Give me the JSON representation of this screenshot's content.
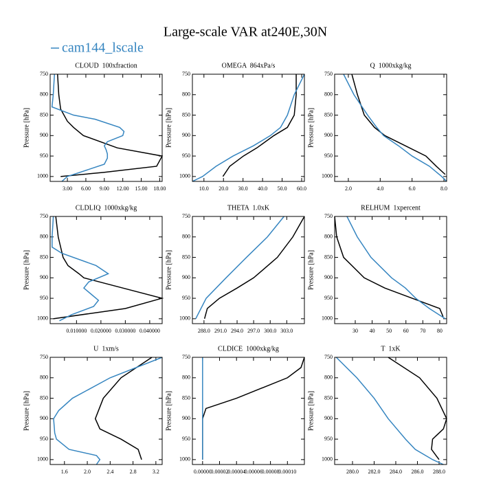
{
  "header": {
    "title": "Large-scale VAR at240E,30N",
    "legend": {
      "name": "cam144_lscale",
      "color": "#3585c0"
    }
  },
  "chart_data": [
    {
      "type": "line",
      "title": "CLOUD  100xfraction",
      "ylabel": "Pressure [hPa]",
      "xlim": [
        0.2,
        18.4
      ],
      "ylim": [
        750,
        1012
      ],
      "y_inverted": true,
      "xticks": [
        {
          "value": 3,
          "label": "3.00"
        },
        {
          "value": 6,
          "label": "6.00"
        },
        {
          "value": 9,
          "label": "9.00"
        },
        {
          "value": 12,
          "label": "12.00"
        },
        {
          "value": 15,
          "label": "15.00"
        },
        {
          "value": 18,
          "label": "18.00"
        }
      ],
      "yticks": [
        750,
        800,
        850,
        900,
        950,
        1000
      ],
      "series": [
        {
          "color": "#000000",
          "x": [
            1.4,
            1.6,
            1.9,
            3.0,
            4.0,
            5.6,
            11.1,
            18.4,
            17.5,
            8.9,
            1.9
          ],
          "y": [
            750,
            800,
            835,
            865,
            880,
            900,
            930,
            950,
            975,
            990,
            1000
          ]
        },
        {
          "color": "#3585c0",
          "x": [
            0.9,
            0.7,
            0.5,
            4.0,
            7.5,
            11.5,
            12.2,
            12.0,
            9.5,
            9.0,
            9.3,
            9.5,
            9.5,
            9.0,
            7.0,
            3.0,
            2.1
          ],
          "y": [
            750,
            800,
            830,
            850,
            860,
            880,
            890,
            900,
            915,
            925,
            935,
            945,
            955,
            970,
            980,
            1000,
            1012
          ]
        }
      ]
    },
    {
      "type": "line",
      "title": "OMEGA  864xPa/s",
      "ylabel": "Pressure [hPa]",
      "xlim": [
        4.1,
        61.4
      ],
      "ylim": [
        750,
        1012
      ],
      "y_inverted": true,
      "xticks": [
        {
          "value": 10,
          "label": "10.0"
        },
        {
          "value": 20,
          "label": "20.0"
        },
        {
          "value": 30,
          "label": "30.0"
        },
        {
          "value": 40,
          "label": "40.0"
        },
        {
          "value": 50,
          "label": "50.0"
        },
        {
          "value": 60,
          "label": "60.0"
        }
      ],
      "yticks": [
        750,
        800,
        850,
        900,
        950,
        1000
      ],
      "series": [
        {
          "color": "#000000",
          "x": [
            57.2,
            57.2,
            56.2,
            52.7,
            45.8,
            37.1,
            30.2,
            23.2,
            19.7
          ],
          "y": [
            750,
            800,
            850,
            880,
            900,
            930,
            950,
            975,
            1000
          ]
        },
        {
          "color": "#3585c0",
          "x": [
            61.4,
            56.2,
            52.7,
            49.2,
            44.0,
            35.3,
            24.9,
            16.2,
            9.3,
            4.1
          ],
          "y": [
            750,
            800,
            850,
            880,
            900,
            925,
            950,
            975,
            1000,
            1012
          ]
        }
      ]
    },
    {
      "type": "line",
      "title": "Q  1000xkg/kg",
      "ylabel": "Pressure [hPa]",
      "xlim": [
        1.14,
        8.17
      ],
      "ylim": [
        750,
        1012
      ],
      "y_inverted": true,
      "xticks": [
        {
          "value": 2,
          "label": "2.0"
        },
        {
          "value": 4,
          "label": "4.0"
        },
        {
          "value": 6,
          "label": "6.0"
        },
        {
          "value": 8,
          "label": "8.0"
        }
      ],
      "yticks": [
        750,
        800,
        850,
        900,
        950,
        1000
      ],
      "series": [
        {
          "color": "#000000",
          "x": [
            2.22,
            2.57,
            3.0,
            3.64,
            4.29,
            5.58,
            6.87,
            7.52,
            8.08
          ],
          "y": [
            750,
            800,
            850,
            880,
            900,
            925,
            950,
            975,
            995
          ]
        },
        {
          "color": "#3585c0",
          "x": [
            1.7,
            2.35,
            3.21,
            3.78,
            4.21,
            5.15,
            6.0,
            7.09,
            7.86,
            8.17
          ],
          "y": [
            750,
            800,
            850,
            880,
            900,
            925,
            950,
            975,
            1000,
            1012
          ]
        }
      ]
    },
    {
      "type": "line",
      "title": "CLDLIQ  1000xkg/kg",
      "ylabel": "Pressure [hPa]",
      "xlim": [
        -0.0008,
        0.0451
      ],
      "ylim": [
        750,
        1012
      ],
      "y_inverted": true,
      "xticks": [
        {
          "value": 0.01,
          "label": "0.010000"
        },
        {
          "value": 0.02,
          "label": "0.020000"
        },
        {
          "value": 0.03,
          "label": "0.030000"
        },
        {
          "value": 0.04,
          "label": "0.040000"
        }
      ],
      "yticks": [
        750,
        800,
        850,
        900,
        950,
        1000
      ],
      "series": [
        {
          "color": "#000000",
          "x": [
            0.0015,
            0.0025,
            0.0045,
            0.0065,
            0.011,
            0.013,
            0.029,
            0.045,
            0.03,
            0.0005
          ],
          "y": [
            750,
            800,
            850,
            870,
            890,
            900,
            925,
            950,
            975,
            1000
          ]
        },
        {
          "color": "#3585c0",
          "x": [
            0.0005,
            0.0,
            0.0,
            0.004,
            0.018,
            0.023,
            0.015,
            0.013,
            0.016,
            0.019,
            0.017,
            0.008,
            0.003
          ],
          "y": [
            750,
            800,
            825,
            840,
            870,
            890,
            910,
            925,
            940,
            955,
            970,
            990,
            1005
          ]
        }
      ]
    },
    {
      "type": "line",
      "title": "THETA  1.0xK",
      "ylabel": "Pressure [hPa]",
      "xlim": [
        285.9,
        306.2
      ],
      "ylim": [
        750,
        1012
      ],
      "y_inverted": true,
      "xticks": [
        {
          "value": 288,
          "label": "288.0"
        },
        {
          "value": 291,
          "label": "291.0"
        },
        {
          "value": 294,
          "label": "294.0"
        },
        {
          "value": 297,
          "label": "297.0"
        },
        {
          "value": 300,
          "label": "300.0"
        },
        {
          "value": 303,
          "label": "303.0"
        }
      ],
      "yticks": [
        750,
        800,
        850,
        900,
        950,
        1000
      ],
      "series": [
        {
          "color": "#000000",
          "x": [
            306.2,
            304.1,
            301.3,
            297.0,
            294.0,
            290.8,
            288.6,
            288.1
          ],
          "y": [
            750,
            800,
            850,
            900,
            925,
            950,
            975,
            1000
          ]
        },
        {
          "color": "#3585c0",
          "x": [
            302.5,
            299.5,
            295.7,
            292.0,
            288.4,
            286.5
          ],
          "y": [
            750,
            800,
            850,
            900,
            950,
            1000
          ]
        }
      ]
    },
    {
      "type": "line",
      "title": "RELHUM  1xpercent",
      "ylabel": "Pressure [hPa]",
      "xlim": [
        17.8,
        84.1
      ],
      "ylim": [
        750,
        1012
      ],
      "y_inverted": true,
      "xticks": [
        30,
        40,
        50,
        60,
        70,
        80
      ],
      "yticks": [
        750,
        800,
        850,
        900,
        950,
        1000
      ],
      "series": [
        {
          "color": "#000000",
          "x": [
            17.8,
            19.0,
            23.1,
            35.3,
            47.5,
            63.7,
            80.0,
            82.0
          ],
          "y": [
            750,
            800,
            850,
            900,
            925,
            950,
            975,
            995
          ]
        },
        {
          "color": "#3585c0",
          "x": [
            25.1,
            31.2,
            39.3,
            51.5,
            59.7,
            65.8,
            73.9,
            83.3
          ],
          "y": [
            750,
            800,
            850,
            900,
            925,
            950,
            975,
            1000
          ]
        }
      ]
    },
    {
      "type": "line",
      "title": "U  1xm/s",
      "ylabel": "Pressure [hPa]",
      "xlim": [
        1.35,
        3.31
      ],
      "ylim": [
        750,
        1012
      ],
      "y_inverted": true,
      "xticks": [
        1.6,
        {
          "value": 2,
          "label": "2.0"
        },
        2.4,
        2.8,
        3.2
      ],
      "yticks": [
        750,
        800,
        850,
        900,
        950,
        1000
      ],
      "series": [
        {
          "color": "#000000",
          "x": [
            3.13,
            2.59,
            2.28,
            2.14,
            2.22,
            2.59,
            2.89,
            2.95
          ],
          "y": [
            750,
            800,
            850,
            900,
            925,
            950,
            975,
            1000
          ]
        },
        {
          "color": "#3585c0",
          "x": [
            3.31,
            2.4,
            1.74,
            1.5,
            1.41,
            1.43,
            1.46,
            1.68,
            2.16,
            2.22,
            2.16
          ],
          "y": [
            750,
            800,
            850,
            880,
            900,
            935,
            950,
            975,
            990,
            1000,
            1012
          ]
        }
      ]
    },
    {
      "type": "line",
      "title": "CLDICE  1000xkg/kg",
      "ylabel": "Pressure [hPa]",
      "xlim": [
        -1.2e-05,
        0.00012
      ],
      "ylim": [
        750,
        1012
      ],
      "y_inverted": true,
      "xticks": [
        {
          "value": 0,
          "label": "0.00000"
        },
        {
          "value": 2e-05,
          "label": "0.00002"
        },
        {
          "value": 4e-05,
          "label": "0.00004"
        },
        {
          "value": 6e-05,
          "label": "0.00006"
        },
        {
          "value": 8e-05,
          "label": "0.00008"
        },
        {
          "value": 0.0001,
          "label": "0.00010"
        }
      ],
      "yticks": [
        750,
        800,
        850,
        900,
        950,
        1000
      ],
      "series": [
        {
          "color": "#000000",
          "x": [
            0.00012,
            0.000116,
            0.0001,
            4e-05,
            4e-06,
            0,
            0,
            0
          ],
          "y": [
            750,
            775,
            800,
            850,
            875,
            900,
            925,
            1000
          ]
        },
        {
          "color": "#3585c0",
          "x": [
            0,
            0
          ],
          "y": [
            750,
            1000
          ]
        }
      ]
    },
    {
      "type": "line",
      "title": "T  1xK",
      "ylabel": "Pressure [hPa]",
      "xlim": [
        278.35,
        288.7
      ],
      "ylim": [
        750,
        1012
      ],
      "y_inverted": true,
      "xticks": [
        {
          "value": 280,
          "label": "280.0"
        },
        {
          "value": 282,
          "label": "282.0"
        },
        {
          "value": 284,
          "label": "284.0"
        },
        {
          "value": 286,
          "label": "286.0"
        },
        {
          "value": 288,
          "label": "288.0"
        }
      ],
      "yticks": [
        750,
        800,
        850,
        900,
        950,
        1000
      ],
      "series": [
        {
          "color": "#000000",
          "x": [
            283.3,
            286.2,
            287.8,
            288.7,
            288.4,
            287.4,
            287.3,
            288.0
          ],
          "y": [
            750,
            800,
            850,
            900,
            925,
            950,
            975,
            1000
          ]
        },
        {
          "color": "#3585c0",
          "x": [
            278.5,
            280.4,
            282.0,
            283.3,
            284.9,
            285.8,
            287.4,
            288.4
          ],
          "y": [
            750,
            800,
            850,
            900,
            950,
            975,
            1000,
            1012
          ]
        }
      ]
    }
  ]
}
